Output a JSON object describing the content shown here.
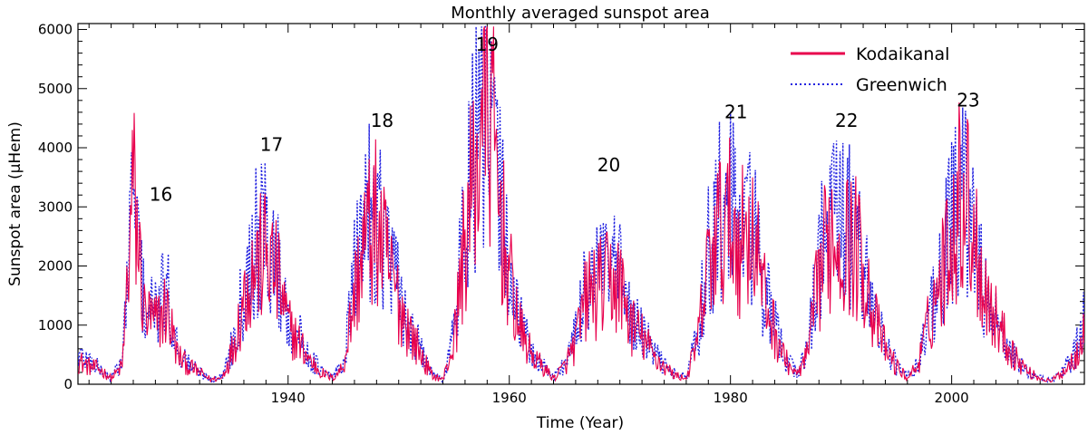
{
  "chart_data": {
    "type": "line",
    "title": "Monthly averaged sunspot area",
    "xlabel": "Time (Year)",
    "ylabel": "Sunspot area (μHem)",
    "xlim": [
      1921,
      2012
    ],
    "ylim": [
      0,
      6100
    ],
    "x_ticks": [
      1940,
      1960,
      1980,
      2000
    ],
    "y_ticks": [
      0,
      1000,
      2000,
      3000,
      4000,
      5000,
      6000
    ],
    "legend_position": "top-right",
    "series": [
      {
        "name": "Kodaikanal",
        "color": "#e8004c",
        "style": "solid",
        "x": [
          1921,
          1922,
          1923,
          1924,
          1925,
          1926,
          1927,
          1928,
          1929,
          1930,
          1931,
          1932,
          1933,
          1934,
          1935,
          1936,
          1937,
          1938,
          1939,
          1940,
          1941,
          1942,
          1943,
          1944,
          1945,
          1946,
          1947,
          1948,
          1949,
          1950,
          1951,
          1952,
          1953,
          1954,
          1955,
          1956,
          1957,
          1958,
          1959,
          1960,
          1961,
          1962,
          1963,
          1964,
          1965,
          1966,
          1967,
          1968,
          1969,
          1970,
          1971,
          1972,
          1973,
          1974,
          1975,
          1976,
          1977,
          1978,
          1979,
          1980,
          1981,
          1982,
          1983,
          1984,
          1985,
          1986,
          1987,
          1988,
          1989,
          1990,
          1991,
          1992,
          1993,
          1994,
          1995,
          1996,
          1997,
          1998,
          1999,
          2000,
          2001,
          2002,
          2003,
          2004,
          2005,
          2006,
          2007,
          2008,
          2009,
          2010,
          2011,
          2012
        ],
        "values": [
          400,
          300,
          250,
          100,
          300,
          3300,
          1200,
          1000,
          1300,
          500,
          300,
          200,
          80,
          100,
          600,
          1500,
          2000,
          2200,
          1800,
          1000,
          700,
          400,
          200,
          100,
          300,
          1500,
          2500,
          2700,
          2000,
          1400,
          900,
          500,
          150,
          80,
          700,
          2500,
          3600,
          5000,
          3200,
          1800,
          900,
          500,
          300,
          100,
          300,
          700,
          1500,
          1600,
          1700,
          1700,
          1000,
          800,
          500,
          300,
          150,
          100,
          700,
          2000,
          2600,
          2700,
          2400,
          2800,
          1500,
          900,
          400,
          150,
          500,
          1800,
          2600,
          2400,
          2400,
          2100,
          1100,
          600,
          300,
          100,
          350,
          1100,
          1800,
          2700,
          3400,
          2600,
          1600,
          1100,
          700,
          400,
          200,
          100,
          50,
          200,
          400,
          1000
        ],
        "peaks": [
          {
            "x": 1926,
            "value": 3300
          },
          {
            "x": 1957.5,
            "value": 5000
          },
          {
            "x": 1982,
            "value": 3500
          },
          {
            "x": 2000.5,
            "value": 3600
          }
        ]
      },
      {
        "name": "Greenwich",
        "color": "#2020e0",
        "style": "dotted",
        "x": [
          1921,
          1922,
          1923,
          1924,
          1925,
          1926,
          1927,
          1928,
          1929,
          1930,
          1931,
          1932,
          1933,
          1934,
          1935,
          1936,
          1937,
          1938,
          1939,
          1940,
          1941,
          1942,
          1943,
          1944,
          1945,
          1946,
          1947,
          1948,
          1949,
          1950,
          1951,
          1952,
          1953,
          1954,
          1955,
          1956,
          1957,
          1958,
          1959,
          1960,
          1961,
          1962,
          1963,
          1964,
          1965,
          1966,
          1967,
          1968,
          1969,
          1970,
          1971,
          1972,
          1973,
          1974,
          1975,
          1976,
          1977,
          1978,
          1979,
          1980,
          1981,
          1982,
          1983,
          1984,
          1985,
          1986,
          1987,
          1988,
          1989,
          1990,
          1991,
          1992,
          1993,
          1994,
          1995,
          1996,
          1997,
          1998,
          1999,
          2000,
          2001,
          2002,
          2003,
          2004,
          2005,
          2006,
          2007,
          2008,
          2009,
          2010,
          2011,
          2012
        ],
        "values": [
          500,
          400,
          250,
          100,
          400,
          3200,
          1300,
          1200,
          1600,
          600,
          350,
          200,
          80,
          120,
          700,
          1700,
          2400,
          2500,
          2000,
          1100,
          800,
          450,
          220,
          120,
          350,
          1800,
          2900,
          3000,
          2300,
          1500,
          1000,
          550,
          170,
          80,
          900,
          2900,
          4000,
          4500,
          3500,
          2000,
          1000,
          550,
          320,
          120,
          350,
          800,
          1800,
          1900,
          1900,
          1800,
          1100,
          850,
          550,
          320,
          170,
          120,
          800,
          2200,
          2900,
          3000,
          2600,
          2900,
          1600,
          950,
          450,
          170,
          600,
          2100,
          3000,
          2700,
          2600,
          2200,
          1200,
          650,
          330,
          120,
          380,
          1200,
          1900,
          2700,
          3200,
          2500,
          1500,
          1000,
          650,
          380,
          200,
          100,
          60,
          220,
          450,
          1100
        ],
        "peaks": [
          {
            "x": 1926,
            "value": 3200
          },
          {
            "x": 1947,
            "value": 3900
          },
          {
            "x": 1958.5,
            "value": 4900
          },
          {
            "x": 1989,
            "value": 3700
          }
        ]
      }
    ],
    "annotations": [
      {
        "text": "16",
        "x": 1928.5
      },
      {
        "text": "17",
        "x": 1938.5
      },
      {
        "text": "18",
        "x": 1948.5
      },
      {
        "text": "19",
        "x": 1958
      },
      {
        "text": "20",
        "x": 1969
      },
      {
        "text": "21",
        "x": 1980.5
      },
      {
        "text": "22",
        "x": 1990.5
      },
      {
        "text": "23",
        "x": 2001.5
      }
    ]
  }
}
